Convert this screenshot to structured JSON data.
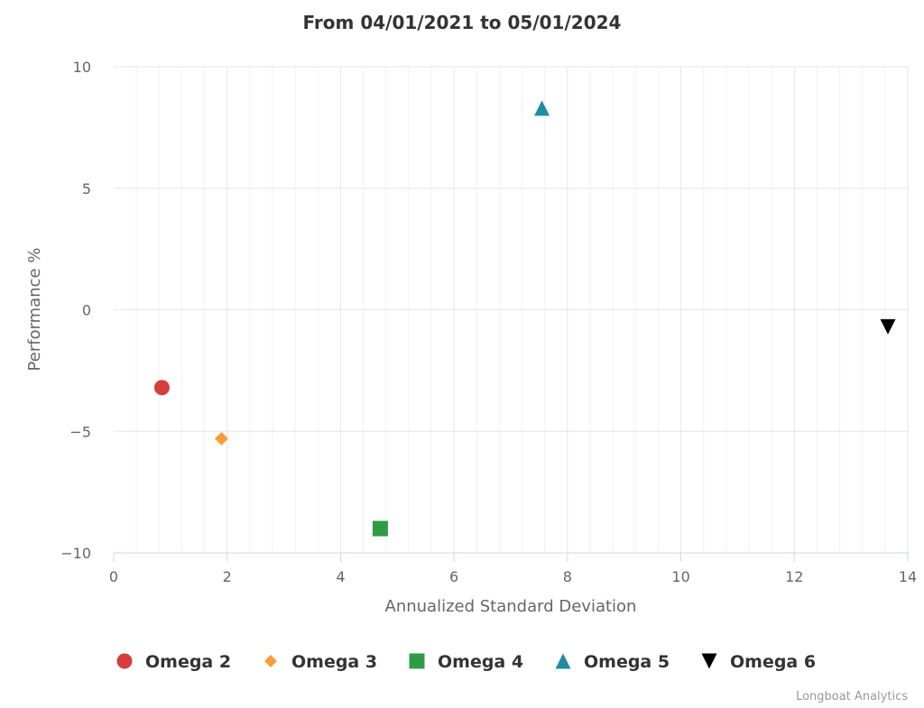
{
  "chart_data": {
    "type": "scatter",
    "title": "From 04/01/2021 to 05/01/2024",
    "xlabel": "Annualized Standard Deviation",
    "ylabel": "Performance %",
    "xlim": [
      0,
      14
    ],
    "ylim": [
      -10,
      10
    ],
    "x_ticks": [
      0,
      2,
      4,
      6,
      8,
      10,
      12,
      14
    ],
    "y_ticks": [
      10,
      5,
      0,
      -5,
      -10
    ],
    "x_tick_labels": [
      "0",
      "2",
      "4",
      "6",
      "8",
      "10",
      "12",
      "14"
    ],
    "y_tick_labels": [
      "10",
      "5",
      "0",
      "−5",
      "−10"
    ],
    "grid": true,
    "legend_position": "bottom",
    "series": [
      {
        "name": "Omega 2",
        "marker": "circle",
        "color": "#d63d3d",
        "points": [
          {
            "x": 0.85,
            "y": -3.2
          }
        ]
      },
      {
        "name": "Omega 3",
        "marker": "diamond",
        "color": "#f99d3b",
        "points": [
          {
            "x": 1.9,
            "y": -5.3
          }
        ]
      },
      {
        "name": "Omega 4",
        "marker": "square",
        "color": "#2e9c45",
        "points": [
          {
            "x": 4.7,
            "y": -9.0
          }
        ]
      },
      {
        "name": "Omega 5",
        "marker": "triangle",
        "color": "#1f8ca3",
        "points": [
          {
            "x": 7.55,
            "y": 8.3
          }
        ]
      },
      {
        "name": "Omega 6",
        "marker": "triangle-down",
        "color": "#000000",
        "points": [
          {
            "x": 13.65,
            "y": -0.7
          }
        ]
      }
    ]
  },
  "credit": "Longboat Analytics"
}
